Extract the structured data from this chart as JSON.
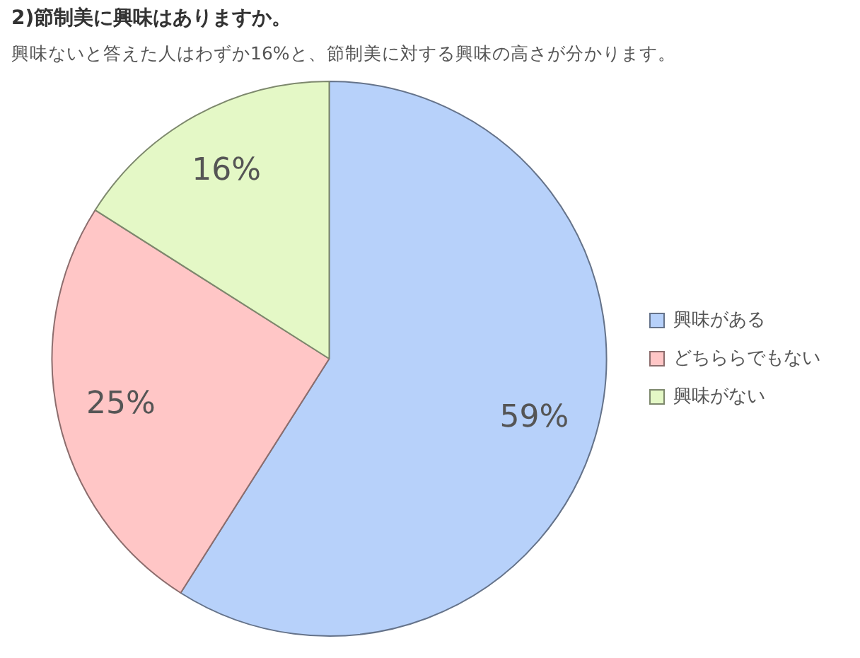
{
  "chart_data": {
    "type": "pie",
    "title": "2)節制美に興味はありますか。",
    "subtitle": "興味ないと答えた人はわずか16%と、節制美に対する興味の高さが分かります。",
    "categories": [
      "興味がある",
      "どちららでもない",
      "興味がない"
    ],
    "values": [
      59,
      25,
      16
    ],
    "colors": [
      "#b7d1fa",
      "#ffc6c6",
      "#e4f8c6"
    ],
    "value_labels": [
      "59%",
      "25%",
      "16%"
    ],
    "legend": "right"
  }
}
